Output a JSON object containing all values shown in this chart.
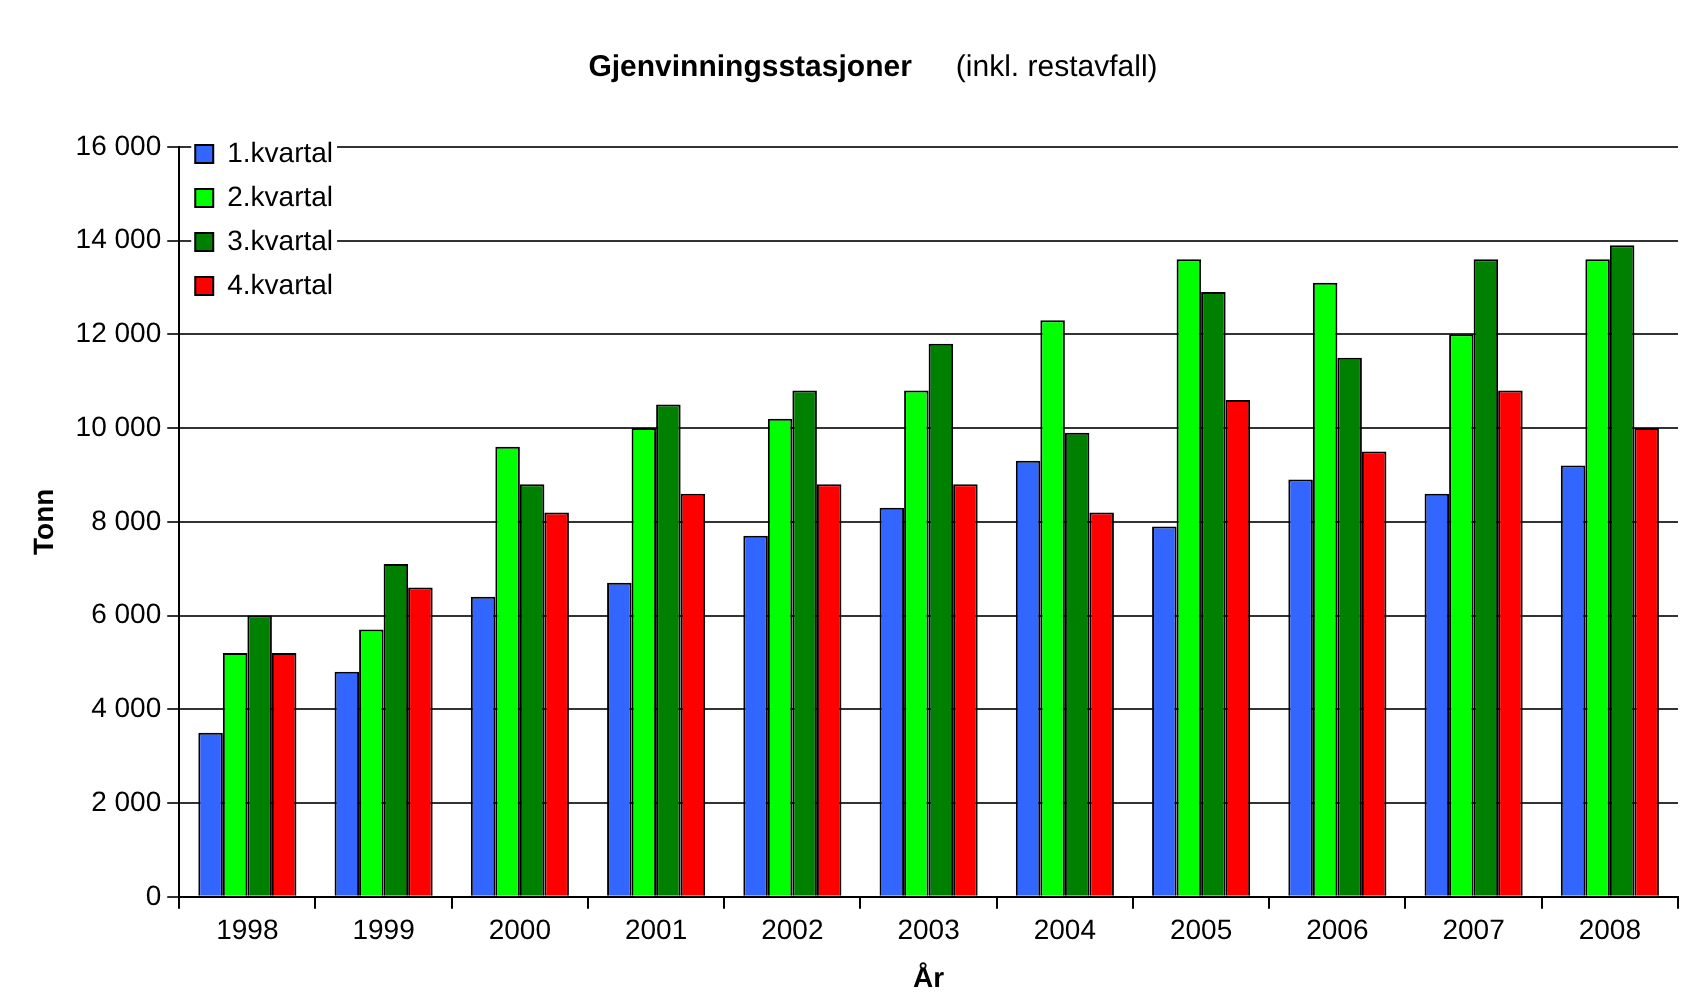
{
  "chart_data": {
    "type": "bar",
    "title": "Gjenvinningsstasjoner",
    "subtitle": "(inkl. restavfall)",
    "xlabel": "År",
    "ylabel": "Tonn",
    "categories": [
      "1998",
      "1999",
      "2000",
      "2001",
      "2002",
      "2003",
      "2004",
      "2005",
      "2006",
      "2007",
      "2008"
    ],
    "series": [
      {
        "name": "1.kvartal",
        "color": "#3366ff",
        "values": [
          3500,
          4800,
          6400,
          6700,
          7700,
          8300,
          9300,
          7900,
          8900,
          8600,
          9200
        ]
      },
      {
        "name": "2.kvartal",
        "color": "#00ff00",
        "values": [
          5200,
          5700,
          9600,
          10000,
          10200,
          10800,
          12300,
          13600,
          13100,
          12000,
          13600
        ]
      },
      {
        "name": "3.kvartal",
        "color": "#008000",
        "values": [
          6000,
          7100,
          8800,
          10500,
          10800,
          11800,
          9900,
          12900,
          11500,
          13600,
          13900
        ]
      },
      {
        "name": "4.kvartal",
        "color": "#ff0000",
        "values": [
          5200,
          6600,
          8200,
          8600,
          8800,
          8800,
          8200,
          10600,
          9500,
          10800,
          10000
        ]
      }
    ],
    "ylim": [
      0,
      16000
    ],
    "yticks": [
      {
        "value": 0,
        "label": "0"
      },
      {
        "value": 2000,
        "label": "2 000"
      },
      {
        "value": 4000,
        "label": "4 000"
      },
      {
        "value": 6000,
        "label": "6 000"
      },
      {
        "value": 8000,
        "label": "8 000"
      },
      {
        "value": 10000,
        "label": "10 000"
      },
      {
        "value": 12000,
        "label": "12 000"
      },
      {
        "value": 14000,
        "label": "14 000"
      },
      {
        "value": 16000,
        "label": "16 000"
      }
    ],
    "grid": "y",
    "legend": "top left"
  }
}
